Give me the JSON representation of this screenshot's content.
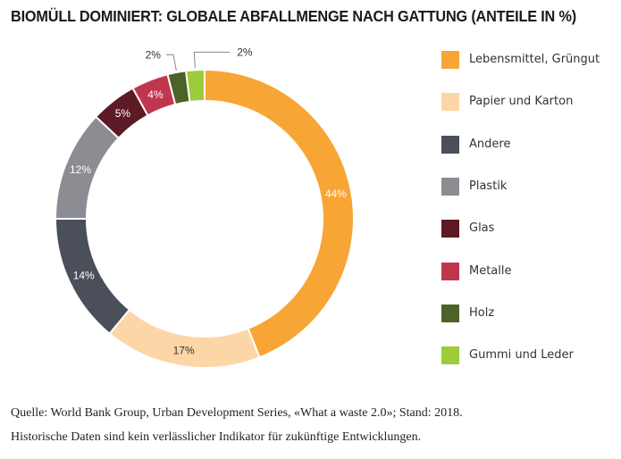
{
  "chart_data": {
    "type": "pie",
    "variant": "donut",
    "title": "BIOMÜLL DOMINIERT: GLOBALE ABFALLMENGE NACH GATTUNG (ANTEILE IN %)",
    "unit": "%",
    "legend_position": "right",
    "categories": [
      "Lebensmittel, Grüngut",
      "Papier und Karton",
      "Andere",
      "Plastik",
      "Glas",
      "Metalle",
      "Holz",
      "Gummi und Leder"
    ],
    "values": [
      44,
      17,
      14,
      12,
      5,
      4,
      2,
      2
    ],
    "labels": [
      "44%",
      "17%",
      "14%",
      "12%",
      "5%",
      "4%",
      "2%",
      "2%"
    ],
    "colors": [
      "#f7a535",
      "#fdd6a7",
      "#4a4f5a",
      "#8b8d92",
      "#5c1a24",
      "#c1364f",
      "#4d6128",
      "#9ccc3c"
    ],
    "label_colors": [
      "#ffffff",
      "#333333",
      "#ffffff",
      "#ffffff",
      "#ffffff",
      "#ffffff",
      "#333333",
      "#333333"
    ]
  },
  "footer": {
    "source": "Quelle: World Bank Group, Urban Development Series, «What a waste 2.0»; Stand: 2018.",
    "disclaimer": "Historische Daten sind kein verlässlicher Indikator für zukünftige Entwicklungen."
  }
}
